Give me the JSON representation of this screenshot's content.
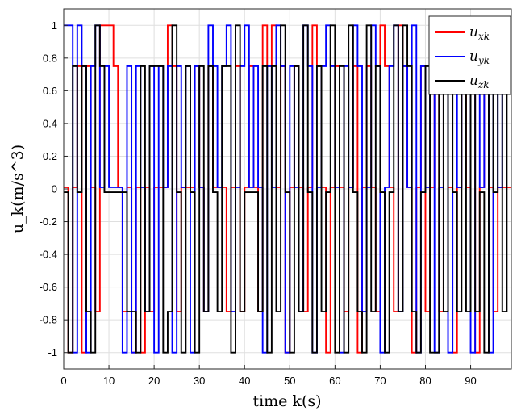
{
  "chart_data": {
    "type": "line",
    "title": "",
    "xlabel": "time k(s)",
    "ylabel": "u_k(m/s^3)",
    "xlim": [
      0,
      99
    ],
    "ylim": [
      -1.1,
      1.1
    ],
    "xticks": [
      "0",
      "10",
      "20",
      "30",
      "40",
      "50",
      "60",
      "70",
      "80",
      "90"
    ],
    "yticks": [
      "-1",
      "-0.8",
      "-0.6",
      "-0.4",
      "-0.2",
      "0",
      "0.2",
      "0.4",
      "0.6",
      "0.8",
      "1"
    ],
    "grid": true,
    "legend_position": "top-right",
    "step": true,
    "series": [
      {
        "name": "u_xk",
        "legend_main": "u",
        "legend_sub": "xk",
        "color": "#ff0000",
        "x": [
          0,
          1,
          2,
          3,
          4,
          5,
          6,
          7,
          8,
          9,
          10,
          11,
          12,
          13,
          14,
          15,
          16,
          17,
          18,
          19,
          20,
          21,
          22,
          23,
          24,
          25,
          26,
          27,
          28,
          29,
          30,
          31,
          32,
          33,
          34,
          35,
          36,
          37,
          38,
          39,
          40,
          41,
          42,
          43,
          44,
          45,
          46,
          47,
          48,
          49,
          50,
          51,
          52,
          53,
          54,
          55,
          56,
          57,
          58,
          59,
          60,
          61,
          62,
          63,
          64,
          65,
          66,
          67,
          68,
          69,
          70,
          71,
          72,
          73,
          74,
          75,
          76,
          77,
          78,
          79,
          80,
          81,
          82,
          83,
          84,
          85,
          86,
          87,
          88,
          89,
          90,
          91,
          92,
          93,
          94,
          95,
          96,
          97,
          98
        ],
        "values": [
          0.01,
          -1,
          0.01,
          0.75,
          -1,
          0.75,
          0.01,
          -0.75,
          1,
          1,
          1,
          0.75,
          0.01,
          -0.75,
          0.01,
          -1,
          0.01,
          -1,
          0.01,
          -0.75,
          0.01,
          0.01,
          0.01,
          1,
          0.75,
          -0.75,
          0.01,
          0.01,
          0.01,
          0.75,
          0.01,
          -0.75,
          0.75,
          0.01,
          0.01,
          0.01,
          -0.75,
          0.01,
          0.75,
          -0.75,
          0.01,
          0.75,
          0.01,
          -0.75,
          1,
          0.75,
          1,
          0.01,
          0.75,
          -1,
          0.01,
          0.75,
          0.01,
          -0.75,
          0.01,
          1,
          0.75,
          0.01,
          -1,
          0.01,
          0.75,
          0.01,
          -0.75,
          0.01,
          0.75,
          -1,
          0.01,
          0.75,
          0.01,
          -0.75,
          1,
          0.75,
          0.01,
          -0.75,
          1,
          0.75,
          0.01,
          -1,
          0.01,
          0.75,
          -0.75,
          0.01,
          0.75,
          -0.75,
          1,
          0.01,
          -1,
          0.01,
          0.75,
          0.01,
          0.75,
          -1,
          0.01,
          0.75,
          0.01,
          -0.75,
          0.01,
          0.01,
          0.01
        ]
      },
      {
        "name": "u_yk",
        "legend_main": "u",
        "legend_sub": "yk",
        "color": "#0000ff",
        "x": [
          0,
          1,
          2,
          3,
          4,
          5,
          6,
          7,
          8,
          9,
          10,
          11,
          12,
          13,
          14,
          15,
          16,
          17,
          18,
          19,
          20,
          21,
          22,
          23,
          24,
          25,
          26,
          27,
          28,
          29,
          30,
          31,
          32,
          33,
          34,
          35,
          36,
          37,
          38,
          39,
          40,
          41,
          42,
          43,
          44,
          45,
          46,
          47,
          48,
          49,
          50,
          51,
          52,
          53,
          54,
          55,
          56,
          57,
          58,
          59,
          60,
          61,
          62,
          63,
          64,
          65,
          66,
          67,
          68,
          69,
          70,
          71,
          72,
          73,
          74,
          75,
          76,
          77,
          78,
          79,
          80,
          81,
          82,
          83,
          84,
          85,
          86,
          87,
          88,
          89,
          90,
          91,
          92,
          93,
          94,
          95,
          96,
          97,
          98
        ],
        "values": [
          1,
          1,
          -1,
          1,
          0.75,
          -1,
          0.75,
          1,
          0.01,
          0.75,
          0.01,
          0.01,
          0.01,
          -1,
          0.75,
          -1,
          0.75,
          0.01,
          -0.75,
          0.75,
          -1,
          0.75,
          0.01,
          0.75,
          -1,
          0.75,
          0.01,
          0.75,
          -1,
          0.75,
          0.01,
          -0.75,
          1,
          0.75,
          0.01,
          0.75,
          1,
          -0.75,
          0.01,
          0.75,
          1,
          0.01,
          0.75,
          0.01,
          -1,
          0.75,
          0.01,
          1,
          0.75,
          -1,
          0.75,
          0.01,
          -0.75,
          1,
          0.75,
          -1,
          0.01,
          0.75,
          1,
          0.75,
          0.01,
          -1,
          0.75,
          0.01,
          1,
          0.75,
          -0.75,
          0.01,
          1,
          0.75,
          -1,
          0.01,
          0.75,
          1,
          -0.75,
          0.75,
          0.01,
          1,
          -1,
          0.75,
          0.01,
          0.75,
          -1,
          0.01,
          0.75,
          -1,
          0.75,
          0.01,
          1,
          0.75,
          -1,
          0.75,
          0.01,
          0.75,
          -1,
          0.75,
          0.01,
          1,
          0.75
        ]
      },
      {
        "name": "u_zk",
        "legend_main": "u",
        "legend_sub": "zk",
        "color": "#000000",
        "x": [
          0,
          1,
          2,
          3,
          4,
          5,
          6,
          7,
          8,
          9,
          10,
          11,
          12,
          13,
          14,
          15,
          16,
          17,
          18,
          19,
          20,
          21,
          22,
          23,
          24,
          25,
          26,
          27,
          28,
          29,
          30,
          31,
          32,
          33,
          34,
          35,
          36,
          37,
          38,
          39,
          40,
          41,
          42,
          43,
          44,
          45,
          46,
          47,
          48,
          49,
          50,
          51,
          52,
          53,
          54,
          55,
          56,
          57,
          58,
          59,
          60,
          61,
          62,
          63,
          64,
          65,
          66,
          67,
          68,
          69,
          70,
          71,
          72,
          73,
          74,
          75,
          76,
          77,
          78,
          79,
          80,
          81,
          82,
          83,
          84,
          85,
          86,
          87,
          88,
          89,
          90,
          91,
          92,
          93,
          94,
          95,
          96,
          97,
          98
        ],
        "values": [
          -0.02,
          -1,
          0.75,
          -0.02,
          0.75,
          -0.75,
          -1,
          1,
          0.75,
          -0.02,
          -0.02,
          -0.02,
          -0.02,
          -0.02,
          -0.75,
          -0.75,
          -1,
          0.75,
          -0.75,
          0.75,
          0.75,
          0.75,
          -1,
          -0.75,
          1,
          -0.02,
          -1,
          0.75,
          -0.02,
          -1,
          0.75,
          -0.75,
          0.75,
          -0.02,
          -0.75,
          0.75,
          0.75,
          -1,
          1,
          -0.75,
          -0.02,
          -0.02,
          -0.02,
          -0.75,
          0.75,
          -1,
          0.75,
          -0.75,
          1,
          -0.02,
          -1,
          0.75,
          -0.75,
          1,
          -0.02,
          -1,
          0.75,
          -0.75,
          -0.02,
          1,
          -1,
          0.75,
          -1,
          1,
          -0.02,
          -0.75,
          -1,
          1,
          -0.75,
          0.75,
          -0.02,
          -1,
          -0.02,
          1,
          -0.75,
          1,
          0.75,
          -0.75,
          -1,
          -0.02,
          0.75,
          -1,
          -1,
          0.75,
          -0.75,
          1,
          -0.02,
          -0.75,
          0.75,
          -0.75,
          1,
          -0.75,
          -0.02,
          -1,
          1,
          -0.02,
          0.75,
          -0.75,
          0.75
        ]
      }
    ]
  }
}
